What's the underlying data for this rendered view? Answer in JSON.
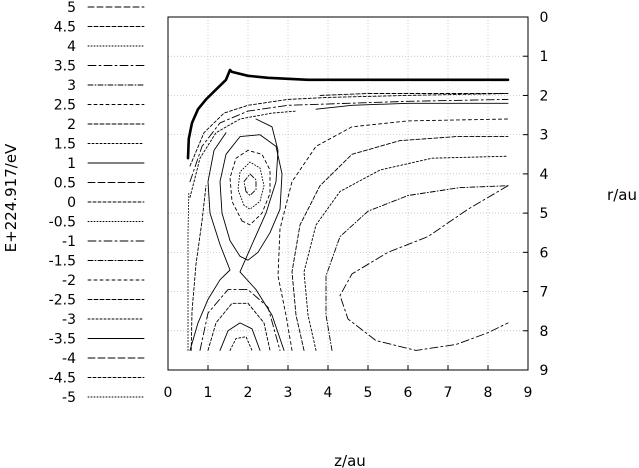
{
  "chart_data": {
    "type": "contour",
    "xlabel": "z/au",
    "ylabel_right": "r/au",
    "legend_title": "E+224.917/eV",
    "x_ticks": [
      0,
      1,
      2,
      3,
      4,
      5,
      6,
      7,
      8,
      9
    ],
    "y_ticks": [
      0,
      1,
      2,
      3,
      4,
      5,
      6,
      7,
      8,
      9
    ],
    "xlim": [
      0,
      9
    ],
    "ylim": [
      9,
      0
    ],
    "grid": true,
    "legend_placement": "left",
    "legend_levels": [
      {
        "label": "5",
        "dash": "6 3"
      },
      {
        "label": "4.5",
        "dash": "4 2"
      },
      {
        "label": "4",
        "dash": "1 2"
      },
      {
        "label": "3.5",
        "dash": "8 3 2 3"
      },
      {
        "label": "3",
        "dash": "5 2 1 2"
      },
      {
        "label": "2.5",
        "dash": "3 3"
      },
      {
        "label": "2",
        "dash": "4 2"
      },
      {
        "label": "1.5",
        "dash": "2 2"
      },
      {
        "label": "1",
        "dash": ""
      },
      {
        "label": "0.5",
        "dash": "7 3"
      },
      {
        "label": "0",
        "dash": "3 2"
      },
      {
        "label": "-0.5",
        "dash": "1 2"
      },
      {
        "label": "-1",
        "dash": "8 3 2 3"
      },
      {
        "label": "-1.5",
        "dash": "5 2 1 2"
      },
      {
        "label": "-2",
        "dash": "3 3"
      },
      {
        "label": "-2.5",
        "dash": "4 2"
      },
      {
        "label": "-3",
        "dash": "2 2"
      },
      {
        "label": "-3.5",
        "dash": ""
      },
      {
        "label": "-4",
        "dash": "7 3"
      },
      {
        "label": "-4.5",
        "dash": "3 2"
      },
      {
        "label": "-5",
        "dash": "1 2"
      }
    ],
    "contours": [
      {
        "level": "boundary",
        "bold": true,
        "dash": "",
        "points": [
          [
            0.5,
            3.6
          ],
          [
            0.52,
            3.1
          ],
          [
            0.6,
            2.7
          ],
          [
            0.75,
            2.35
          ],
          [
            0.95,
            2.1
          ],
          [
            1.2,
            1.85
          ],
          [
            1.45,
            1.6
          ],
          [
            1.55,
            1.35
          ],
          [
            1.6,
            1.4
          ],
          [
            2.0,
            1.5
          ],
          [
            2.5,
            1.55
          ],
          [
            3.5,
            1.6
          ],
          [
            5.0,
            1.6
          ],
          [
            8.5,
            1.6
          ]
        ]
      },
      {
        "level": "inner-1",
        "bold": false,
        "dash": "",
        "points": [
          [
            3.7,
            2.35
          ],
          [
            4.6,
            2.25
          ],
          [
            6.0,
            2.2
          ],
          [
            7.5,
            2.2
          ],
          [
            8.5,
            2.2
          ]
        ]
      },
      {
        "level": "inner-2",
        "bold": false,
        "dash": "4 2",
        "points": [
          [
            3.8,
            2.0
          ],
          [
            5.0,
            1.95
          ],
          [
            6.5,
            1.95
          ],
          [
            8.5,
            1.95
          ]
        ]
      },
      {
        "level": "outer-1",
        "bold": false,
        "dash": "3 2",
        "points": [
          [
            0.55,
            3.8
          ],
          [
            0.9,
            2.95
          ],
          [
            1.4,
            2.45
          ],
          [
            2.0,
            2.25
          ],
          [
            3.0,
            2.1
          ],
          [
            4.0,
            2.05
          ],
          [
            6.0,
            2.0
          ],
          [
            8.5,
            1.95
          ]
        ]
      },
      {
        "level": "outer-2",
        "bold": false,
        "dash": "8 3 2 3",
        "points": [
          [
            0.55,
            4.2
          ],
          [
            0.85,
            3.3
          ],
          [
            1.3,
            2.7
          ],
          [
            2.0,
            2.4
          ],
          [
            3.0,
            2.25
          ],
          [
            4.5,
            2.2
          ],
          [
            6.0,
            2.15
          ],
          [
            8.5,
            2.1
          ]
        ]
      },
      {
        "level": "outer-3",
        "bold": false,
        "dash": "2 2",
        "points": [
          [
            0.55,
            4.6
          ],
          [
            0.8,
            3.6
          ],
          [
            1.2,
            2.95
          ],
          [
            1.8,
            2.6
          ],
          [
            2.6,
            2.45
          ],
          [
            3.2,
            2.4
          ]
        ]
      },
      {
        "level": "well-ring-1",
        "bold": false,
        "dash": "",
        "points": [
          [
            1.55,
            5.7
          ],
          [
            1.35,
            5.0
          ],
          [
            1.3,
            4.2
          ],
          [
            1.45,
            3.5
          ],
          [
            1.8,
            3.05
          ],
          [
            2.3,
            3.0
          ],
          [
            2.7,
            3.3
          ],
          [
            2.85,
            4.0
          ],
          [
            2.8,
            4.9
          ],
          [
            2.55,
            5.5
          ],
          [
            2.25,
            6.0
          ],
          [
            2.0,
            6.2
          ],
          [
            1.8,
            6.1
          ],
          [
            1.55,
            5.7
          ]
        ]
      },
      {
        "level": "well-ring-2",
        "bold": false,
        "dash": "3 3",
        "points": [
          [
            1.85,
            5.2
          ],
          [
            1.6,
            4.7
          ],
          [
            1.55,
            4.1
          ],
          [
            1.7,
            3.6
          ],
          [
            2.0,
            3.4
          ],
          [
            2.35,
            3.5
          ],
          [
            2.55,
            3.9
          ],
          [
            2.55,
            4.5
          ],
          [
            2.35,
            5.0
          ],
          [
            2.05,
            5.3
          ],
          [
            1.85,
            5.2
          ]
        ]
      },
      {
        "level": "well-ring-3",
        "bold": false,
        "dash": "1 2",
        "points": [
          [
            1.9,
            4.8
          ],
          [
            1.75,
            4.4
          ],
          [
            1.8,
            3.95
          ],
          [
            2.05,
            3.7
          ],
          [
            2.3,
            3.85
          ],
          [
            2.4,
            4.3
          ],
          [
            2.3,
            4.7
          ],
          [
            2.05,
            4.9
          ],
          [
            1.9,
            4.8
          ]
        ]
      },
      {
        "level": "well-ring-4",
        "bold": false,
        "dash": "5 2 1 2",
        "points": [
          [
            1.95,
            4.45
          ],
          [
            1.9,
            4.2
          ],
          [
            2.05,
            4.0
          ],
          [
            2.2,
            4.15
          ],
          [
            2.2,
            4.4
          ],
          [
            2.05,
            4.55
          ],
          [
            1.95,
            4.45
          ]
        ]
      },
      {
        "level": "separatrix-left",
        "bold": false,
        "dash": "",
        "points": [
          [
            0.55,
            8.5
          ],
          [
            0.75,
            7.8
          ],
          [
            1.0,
            7.2
          ],
          [
            1.3,
            6.7
          ],
          [
            1.55,
            6.45
          ],
          [
            1.3,
            5.8
          ],
          [
            1.05,
            5.0
          ],
          [
            1.0,
            4.2
          ],
          [
            1.15,
            3.4
          ],
          [
            1.45,
            2.95
          ]
        ]
      },
      {
        "level": "separatrix-right",
        "bold": false,
        "dash": "",
        "points": [
          [
            2.9,
            8.5
          ],
          [
            2.6,
            7.6
          ],
          [
            2.2,
            6.95
          ],
          [
            1.8,
            6.5
          ],
          [
            2.1,
            5.8
          ],
          [
            2.45,
            5.0
          ],
          [
            2.7,
            4.2
          ],
          [
            2.75,
            3.4
          ],
          [
            2.6,
            2.8
          ],
          [
            2.2,
            2.6
          ]
        ]
      },
      {
        "level": "lower-well-1",
        "bold": false,
        "dash": "3 2",
        "points": [
          [
            1.0,
            8.5
          ],
          [
            1.2,
            7.8
          ],
          [
            1.6,
            7.3
          ],
          [
            2.0,
            7.3
          ],
          [
            2.4,
            7.8
          ],
          [
            2.55,
            8.5
          ]
        ]
      },
      {
        "level": "lower-well-2",
        "bold": false,
        "dash": "",
        "points": [
          [
            1.3,
            8.5
          ],
          [
            1.5,
            8.0
          ],
          [
            1.8,
            7.8
          ],
          [
            2.1,
            7.95
          ],
          [
            2.3,
            8.5
          ]
        ]
      },
      {
        "level": "lower-well-3",
        "bold": false,
        "dash": "2 2",
        "points": [
          [
            1.55,
            8.5
          ],
          [
            1.7,
            8.2
          ],
          [
            1.95,
            8.15
          ],
          [
            2.1,
            8.5
          ]
        ]
      },
      {
        "level": "lower-well-4",
        "bold": false,
        "dash": "8 3 2 3",
        "points": [
          [
            0.8,
            8.5
          ],
          [
            1.0,
            7.55
          ],
          [
            1.5,
            6.95
          ],
          [
            2.0,
            6.95
          ],
          [
            2.5,
            7.4
          ],
          [
            2.8,
            8.5
          ]
        ]
      },
      {
        "level": "right-1",
        "bold": false,
        "dash": "3 3",
        "points": [
          [
            3.1,
            8.5
          ],
          [
            2.95,
            7.6
          ],
          [
            2.75,
            6.6
          ],
          [
            2.8,
            5.4
          ],
          [
            3.1,
            4.2
          ],
          [
            3.7,
            3.3
          ],
          [
            4.6,
            2.8
          ],
          [
            6.0,
            2.65
          ],
          [
            8.5,
            2.6
          ]
        ]
      },
      {
        "level": "right-2",
        "bold": false,
        "dash": "4 2",
        "points": [
          [
            3.4,
            8.5
          ],
          [
            3.2,
            7.6
          ],
          [
            3.1,
            6.5
          ],
          [
            3.3,
            5.3
          ],
          [
            3.8,
            4.3
          ],
          [
            4.6,
            3.5
          ],
          [
            5.8,
            3.15
          ],
          [
            7.2,
            3.05
          ],
          [
            8.5,
            3.05
          ]
        ]
      },
      {
        "level": "right-3",
        "bold": false,
        "dash": "2 2",
        "points": [
          [
            3.7,
            8.5
          ],
          [
            3.5,
            7.6
          ],
          [
            3.4,
            6.5
          ],
          [
            3.7,
            5.3
          ],
          [
            4.3,
            4.45
          ],
          [
            5.3,
            3.9
          ],
          [
            6.6,
            3.6
          ],
          [
            8.5,
            3.55
          ]
        ]
      },
      {
        "level": "right-4",
        "bold": false,
        "dash": "5 2 1 2",
        "points": [
          [
            4.1,
            8.5
          ],
          [
            3.95,
            7.6
          ],
          [
            3.95,
            6.6
          ],
          [
            4.3,
            5.6
          ],
          [
            5.0,
            4.95
          ],
          [
            6.0,
            4.55
          ],
          [
            7.3,
            4.35
          ],
          [
            8.5,
            4.3
          ]
        ]
      },
      {
        "level": "right-5",
        "bold": false,
        "dash": "8 3 2 3",
        "points": [
          [
            8.5,
            4.3
          ],
          [
            7.5,
            4.9
          ],
          [
            6.5,
            5.6
          ],
          [
            5.5,
            6.0
          ],
          [
            4.6,
            6.55
          ],
          [
            4.3,
            7.1
          ],
          [
            4.5,
            7.7
          ],
          [
            5.2,
            8.25
          ],
          [
            6.2,
            8.5
          ],
          [
            7.2,
            8.35
          ],
          [
            8.0,
            8.05
          ],
          [
            8.5,
            7.8
          ]
        ]
      },
      {
        "level": "left-wall-1",
        "bold": false,
        "dash": "1 2",
        "points": [
          [
            0.5,
            8.5
          ],
          [
            0.5,
            7.0
          ],
          [
            0.5,
            5.5
          ],
          [
            0.52,
            4.5
          ]
        ]
      },
      {
        "level": "left-wall-2",
        "bold": false,
        "dash": "3 2",
        "points": [
          [
            0.58,
            8.5
          ],
          [
            0.6,
            7.5
          ],
          [
            0.7,
            6.3
          ],
          [
            0.85,
            5.2
          ],
          [
            0.95,
            4.3
          ]
        ]
      }
    ]
  }
}
